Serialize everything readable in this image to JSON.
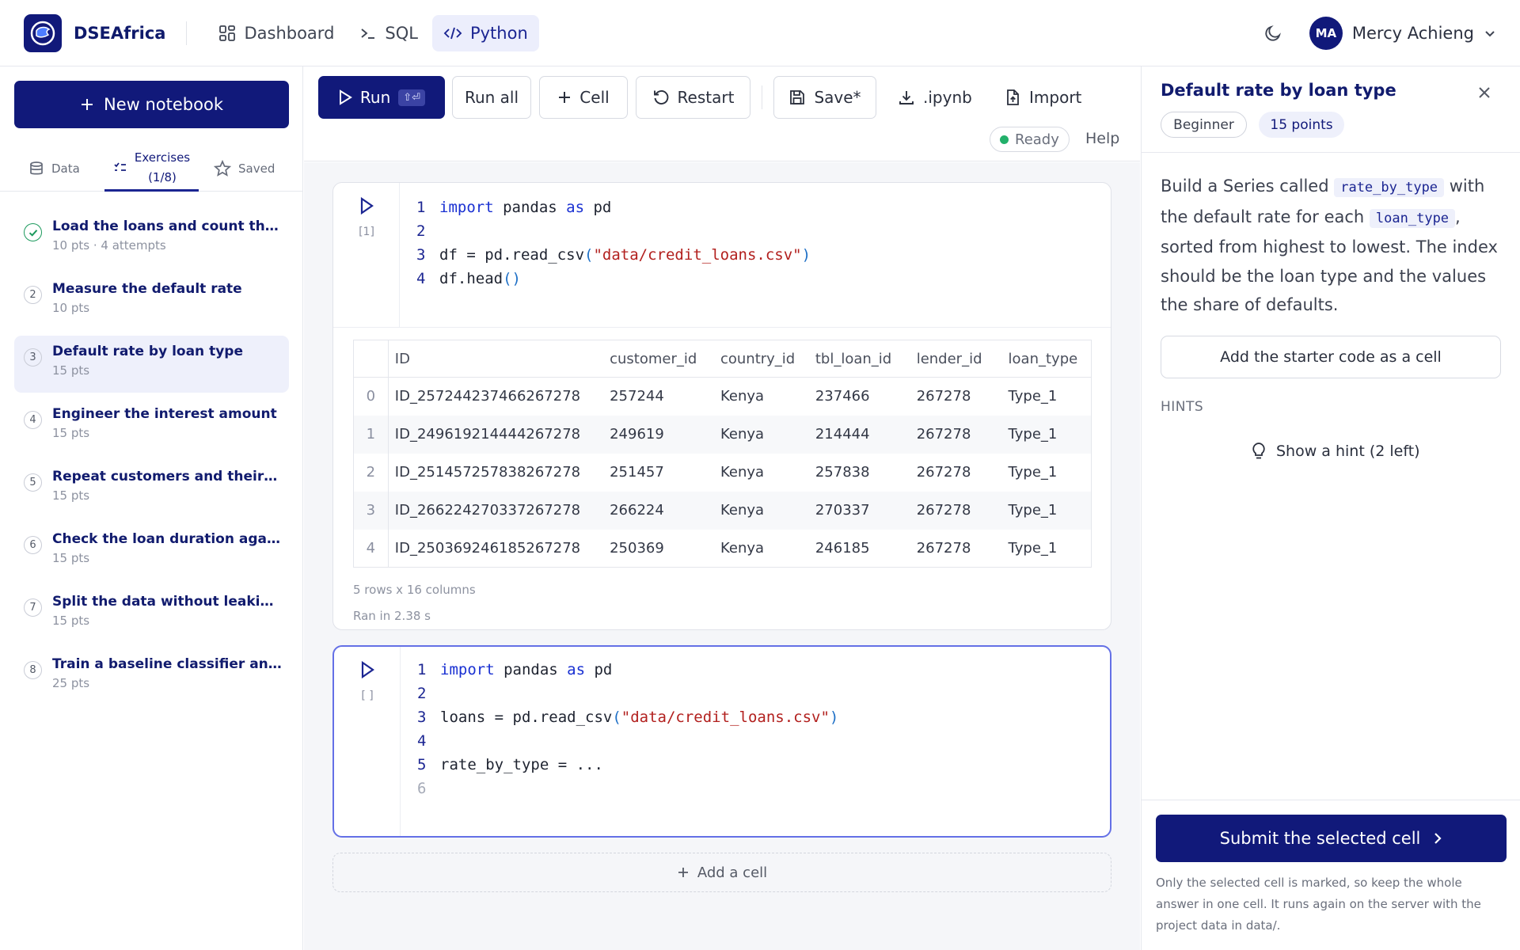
{
  "app": {
    "brand": "DSEAfrica",
    "accent": "#11197a"
  },
  "nav": {
    "items": [
      {
        "label": "Dashboard",
        "icon": "dashboard-icon"
      },
      {
        "label": "SQL",
        "icon": "terminal-icon"
      },
      {
        "label": "Python",
        "icon": "code-icon",
        "active": true
      }
    ]
  },
  "user": {
    "initials": "MA",
    "name": "Mercy Achieng"
  },
  "sidebar": {
    "new_notebook": "New notebook",
    "tabs": [
      {
        "label": "Data"
      },
      {
        "label_line1": "Exercises",
        "label_line2": "(1/8)",
        "active": true
      },
      {
        "label": "Saved"
      }
    ],
    "exercises": [
      {
        "num": "1",
        "title": "Load the loans and count them",
        "meta": "10 pts · 4 attempts",
        "done": true
      },
      {
        "num": "2",
        "title": "Measure the default rate",
        "meta": "10 pts"
      },
      {
        "num": "3",
        "title": "Default rate by loan type",
        "meta": "15 pts",
        "active": true
      },
      {
        "num": "4",
        "title": "Engineer the interest amount",
        "meta": "15 pts"
      },
      {
        "num": "5",
        "title": "Repeat customers and their risk",
        "meta": "15 pts"
      },
      {
        "num": "6",
        "title": "Check the loan duration against...",
        "meta": "15 pts"
      },
      {
        "num": "7",
        "title": "Split the data without leaking th...",
        "meta": "15 pts"
      },
      {
        "num": "8",
        "title": "Train a baseline classifier and m...",
        "meta": "25 pts"
      }
    ]
  },
  "toolbar": {
    "run": "Run",
    "run_shortcut": "⇧⏎",
    "run_all": "Run all",
    "add_cell": "Cell",
    "restart": "Restart",
    "save": "Save*",
    "download": ".ipynb",
    "import": "Import",
    "status": "Ready",
    "help": "Help"
  },
  "cells": [
    {
      "count": "[1]",
      "lines": [
        {
          "n": "1",
          "parts": [
            [
              "kw",
              "import"
            ],
            [
              "t",
              " pandas "
            ],
            [
              "kw",
              "as"
            ],
            [
              "t",
              " pd"
            ]
          ]
        },
        {
          "n": "2",
          "parts": []
        },
        {
          "n": "3",
          "parts": [
            [
              "t",
              "df = pd.read_csv"
            ],
            [
              "par",
              "("
            ],
            [
              "str",
              "\"data/credit_loans.csv\""
            ],
            [
              "par",
              ")"
            ]
          ]
        },
        {
          "n": "4",
          "parts": [
            [
              "t",
              "df.head"
            ],
            [
              "par",
              "()"
            ]
          ]
        }
      ],
      "output": {
        "columns": [
          "",
          "ID",
          "customer_id",
          "country_id",
          "tbl_loan_id",
          "lender_id",
          "loan_type"
        ],
        "rows": [
          [
            "0",
            "ID_257244237466267278",
            "257244",
            "Kenya",
            "237466",
            "267278",
            "Type_1"
          ],
          [
            "1",
            "ID_249619214444267278",
            "249619",
            "Kenya",
            "214444",
            "267278",
            "Type_1"
          ],
          [
            "2",
            "ID_251457257838267278",
            "251457",
            "Kenya",
            "257838",
            "267278",
            "Type_1"
          ],
          [
            "3",
            "ID_266224270337267278",
            "266224",
            "Kenya",
            "270337",
            "267278",
            "Type_1"
          ],
          [
            "4",
            "ID_250369246185267278",
            "250369",
            "Kenya",
            "246185",
            "267278",
            "Type_1"
          ]
        ],
        "shape": "5 rows x 16 columns",
        "timing": "Ran in 2.38 s"
      }
    },
    {
      "count": "[ ]",
      "lines": [
        {
          "n": "1",
          "parts": [
            [
              "kw",
              "import"
            ],
            [
              "t",
              " pandas "
            ],
            [
              "kw",
              "as"
            ],
            [
              "t",
              " pd"
            ]
          ]
        },
        {
          "n": "2",
          "parts": []
        },
        {
          "n": "3",
          "parts": [
            [
              "t",
              "loans = pd.read_csv"
            ],
            [
              "par",
              "("
            ],
            [
              "str",
              "\"data/credit_loans.csv\""
            ],
            [
              "par",
              ")"
            ]
          ]
        },
        {
          "n": "4",
          "parts": []
        },
        {
          "n": "5",
          "parts": [
            [
              "t",
              "rate_by_type = ..."
            ]
          ]
        },
        {
          "n": "6",
          "parts": [],
          "dim": true
        }
      ]
    }
  ],
  "add_cell": "Add a cell",
  "panel": {
    "title": "Default rate by loan type",
    "level": "Beginner",
    "points": "15 points",
    "desc": {
      "t1": "Build a Series called",
      "c1": "rate_by_type",
      "t2": "with the default rate for each",
      "c2": "loan_type",
      "t3": ", sorted from highest to lowest. The index should be the loan type and the values the share of defaults."
    },
    "starter": "Add the starter code as a cell",
    "hints_heading": "HINTS",
    "hint_button": "Show a hint (2 left)",
    "submit": "Submit the selected cell",
    "footnote": "Only the selected cell is marked, so keep the whole answer in one cell. It runs again on the server with the project data in data/."
  }
}
